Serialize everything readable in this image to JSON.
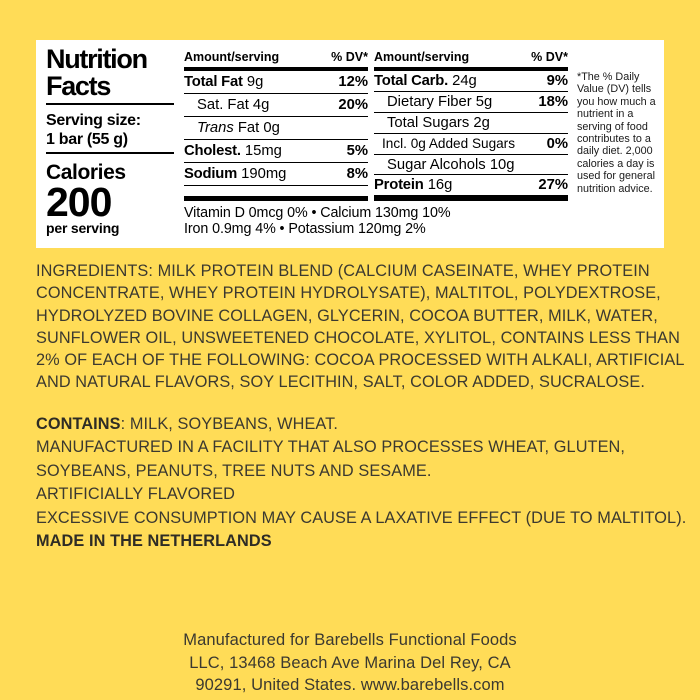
{
  "colors": {
    "background": "#ffdc57",
    "panel": "#ffffff",
    "label_text": "#000000",
    "body_text": "#3b3930"
  },
  "nutrition_panel": {
    "title_line1": "Nutrition",
    "title_line2": "Facts",
    "serving_size_label": "Serving size:",
    "serving_size_value": "1 bar (55 g)",
    "calories_label": "Calories",
    "calories_value": "200",
    "calories_unit": "per serving",
    "col1": {
      "header_amount": "Amount/serving",
      "header_dv": "% DV*",
      "rows": [
        {
          "name_bold": "Total Fat",
          "name_rest": " 9g",
          "dv": "12%"
        },
        {
          "name_bold": "",
          "name_rest": "Sat. Fat 4g",
          "dv": "20%"
        },
        {
          "name_italic": "Trans",
          "name_rest": " Fat 0g",
          "dv": ""
        },
        {
          "name_bold": "Cholest.",
          "name_rest": " 15mg",
          "dv": "5%"
        },
        {
          "name_bold": "Sodium",
          "name_rest": " 190mg",
          "dv": "8%"
        }
      ]
    },
    "col2": {
      "header_amount": "Amount/serving",
      "header_dv": "% DV*",
      "rows": [
        {
          "name_bold": "Total Carb.",
          "name_rest": " 24g",
          "dv": "9%"
        },
        {
          "name_bold": "",
          "name_rest": "Dietary Fiber 5g",
          "dv": "18%"
        },
        {
          "name_bold": "",
          "name_rest": "Total Sugars 2g",
          "dv": ""
        },
        {
          "name_bold": "",
          "name_rest": "Incl. 0g Added Sugars",
          "dv": "0%"
        },
        {
          "name_bold": "",
          "name_rest": "Sugar Alcohols 10g",
          "dv": ""
        },
        {
          "name_bold": "Protein",
          "name_rest": " 16g",
          "dv": "27%"
        }
      ]
    },
    "vitamins_line1": "Vitamin D 0mcg 0%  •  Calcium 130mg 10%",
    "vitamins_line2": "Iron 0.9mg 4%  •  Potassium 120mg 2%",
    "footnote": "*The % Daily Value (DV) tells you how much a nutrient in a serving of food contributes to a daily diet. 2,000 calories a day is used for general nutrition advice."
  },
  "ingredients": {
    "lines": [
      "INGREDIENTS: MILK PROTEIN BLEND (CALCIUM CASEINATE, WHEY PROTEIN",
      "CONCENTRATE, WHEY PROTEIN HYDROLYSATE), MALTITOL, POLYDEXTROSE,",
      "HYDROLYZED BOVINE COLLAGEN, GLYCERIN, COCOA BUTTER, MILK, WATER,",
      "SUNFLOWER OIL, UNSWEETENED CHOCOLATE, XYLITOL, CONTAINS LESS THAN",
      "2% OF EACH OF THE FOLLOWING: COCOA PROCESSED WITH ALKALI, ARTIFICIAL",
      "AND NATURAL FLAVORS, SOY LECITHIN, SALT, COLOR ADDED, SUCRALOSE."
    ]
  },
  "allergens": {
    "contains_bold": "CONTAINS",
    "contains_rest": ": MILK, SOYBEANS, WHEAT.",
    "facility_line1": "MANUFACTURED IN A FACILITY THAT ALSO PROCESSES WHEAT, GLUTEN,",
    "facility_line2": "SOYBEANS, PEANUTS, TREE NUTS AND SESAME.",
    "artificially_flavored": "ARTIFICIALLY FLAVORED",
    "laxative_warning": "EXCESSIVE CONSUMPTION MAY CAUSE A LAXATIVE EFFECT (DUE TO MALTITOL).",
    "made_in": "MADE IN THE NETHERLANDS"
  },
  "footer": {
    "line1": "Manufactured for Barebells Functional Foods",
    "line2": "LLC, 13468 Beach Ave Marina Del Rey, CA",
    "line3": "90291, United States. www.barebells.com"
  }
}
